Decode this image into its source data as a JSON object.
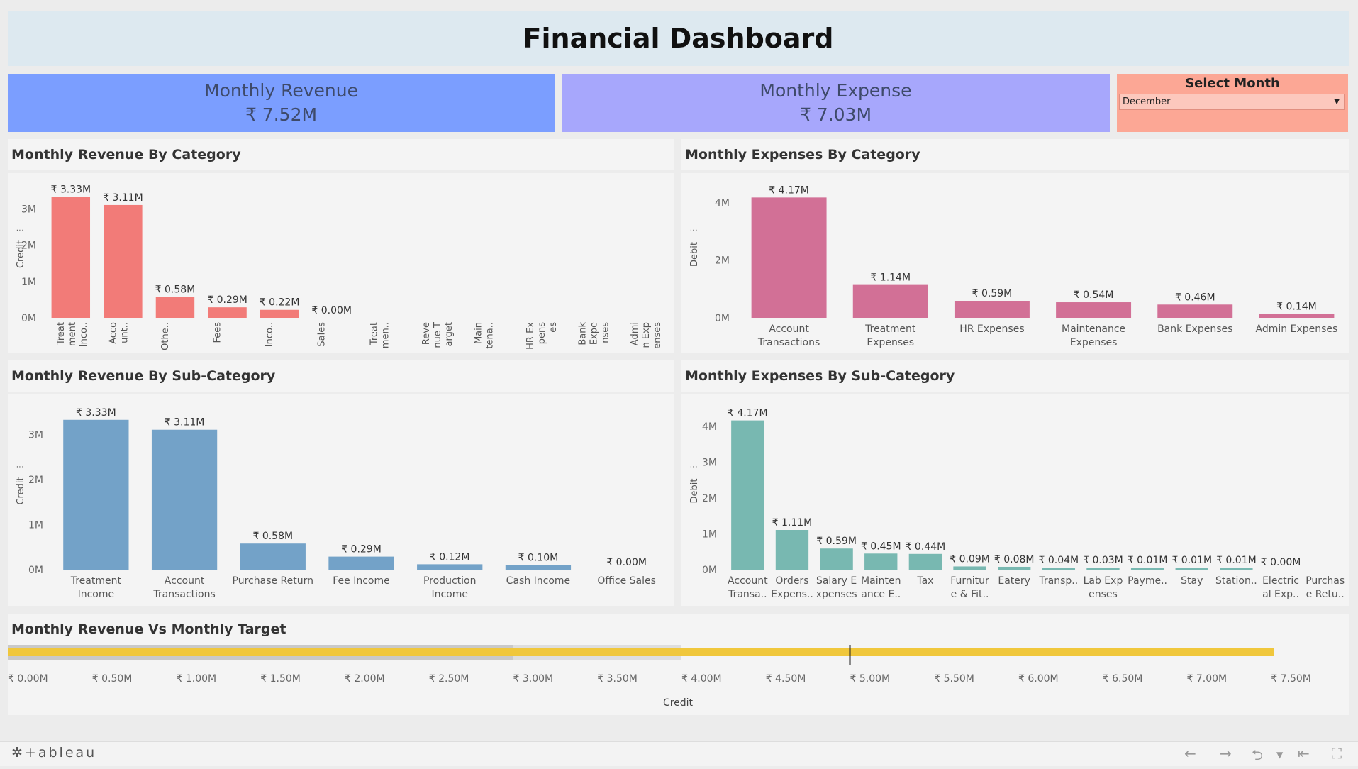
{
  "header": {
    "title": "Financial Dashboard"
  },
  "kpis": {
    "revenue": {
      "label": "Monthly Revenue",
      "value": "₹ 7.52M"
    },
    "expense": {
      "label": "Monthly Expense",
      "value": "₹ 7.03M"
    }
  },
  "filter": {
    "label": "Select Month",
    "selected": "December"
  },
  "footer": {
    "logo": "+ableau"
  },
  "colors": {
    "rev_cat": "#f27b78",
    "exp_cat": "#d27096",
    "rev_sub": "#73a2c8",
    "exp_sub": "#78b8b1",
    "target_bar": "#f0c73c",
    "band_dark": "#c9c9c9",
    "band_light": "#dedede"
  },
  "chart_data": [
    {
      "id": "rev_cat",
      "type": "bar",
      "title": "Monthly Revenue By Category",
      "ylabel": "Credit",
      "ylim": [
        0,
        3500000
      ],
      "yticks": [
        {
          "v": 0,
          "label": "0M"
        },
        {
          "v": 1000000,
          "label": "1M"
        },
        {
          "v": 2000000,
          "label": "2M"
        },
        {
          "v": 3000000,
          "label": "3M"
        }
      ],
      "categories": [
        [
          "Treat",
          "ment",
          "Inco.."
        ],
        [
          "Acco",
          "unt.."
        ],
        [
          "Othe.."
        ],
        [
          "Fees"
        ],
        [
          "Inco.."
        ],
        [
          "Sales"
        ],
        [
          "Treat",
          "men.."
        ],
        [
          "Reve",
          "nue T",
          "arget"
        ],
        [
          "Main",
          "tena.."
        ],
        [
          "HR Ex",
          "pens",
          "es"
        ],
        [
          "Bank",
          "Expe",
          "nses"
        ],
        [
          "Admi",
          "n Exp",
          "enses"
        ]
      ],
      "values": [
        3330000,
        3110000,
        580000,
        290000,
        220000,
        0,
        null,
        null,
        null,
        null,
        null,
        null
      ],
      "labels": [
        "₹ 3.33M",
        "₹ 3.11M",
        "₹ 0.58M",
        "₹ 0.29M",
        "₹ 0.22M",
        "₹ 0.00M",
        "",
        "",
        "",
        "",
        "",
        ""
      ]
    },
    {
      "id": "exp_cat",
      "type": "bar",
      "title": "Monthly Expenses By Category",
      "ylabel": "Debit",
      "ylim": [
        0,
        4400000
      ],
      "yticks": [
        {
          "v": 0,
          "label": "0M"
        },
        {
          "v": 2000000,
          "label": "2M"
        },
        {
          "v": 4000000,
          "label": "4M"
        }
      ],
      "categories": [
        [
          "Account",
          "Transactions"
        ],
        [
          "Treatment",
          "Expenses"
        ],
        [
          "HR Expenses"
        ],
        [
          "Maintenance",
          "Expenses"
        ],
        [
          "Bank Expenses"
        ],
        [
          "Admin Expenses"
        ]
      ],
      "values": [
        4170000,
        1140000,
        590000,
        540000,
        460000,
        140000
      ],
      "labels": [
        "₹ 4.17M",
        "₹ 1.14M",
        "₹ 0.59M",
        "₹ 0.54M",
        "₹ 0.46M",
        "₹ 0.14M"
      ]
    },
    {
      "id": "rev_sub",
      "type": "bar",
      "title": "Monthly Revenue By Sub-Category",
      "ylabel": "Credit",
      "ylim": [
        0,
        3500000
      ],
      "yticks": [
        {
          "v": 0,
          "label": "0M"
        },
        {
          "v": 1000000,
          "label": "1M"
        },
        {
          "v": 2000000,
          "label": "2M"
        },
        {
          "v": 3000000,
          "label": "3M"
        }
      ],
      "categories": [
        [
          "Treatment",
          "Income"
        ],
        [
          "Account",
          "Transactions"
        ],
        [
          "Purchase Return"
        ],
        [
          "Fee Income"
        ],
        [
          "Production",
          "Income"
        ],
        [
          "Cash Income"
        ],
        [
          "Office Sales"
        ]
      ],
      "values": [
        3330000,
        3110000,
        580000,
        290000,
        120000,
        100000,
        0
      ],
      "labels": [
        "₹ 3.33M",
        "₹ 3.11M",
        "₹ 0.58M",
        "₹ 0.29M",
        "₹ 0.12M",
        "₹ 0.10M",
        "₹ 0.00M"
      ]
    },
    {
      "id": "exp_sub",
      "type": "bar",
      "title": "Monthly Expenses By Sub-Category",
      "ylabel": "Debit",
      "ylim": [
        0,
        4400000
      ],
      "yticks": [
        {
          "v": 0,
          "label": "0M"
        },
        {
          "v": 1000000,
          "label": "1M"
        },
        {
          "v": 2000000,
          "label": "2M"
        },
        {
          "v": 3000000,
          "label": "3M"
        },
        {
          "v": 4000000,
          "label": "4M"
        }
      ],
      "categories": [
        [
          "Account",
          "Transa.."
        ],
        [
          "Orders",
          "Expens.."
        ],
        [
          "Salary E",
          "xpenses"
        ],
        [
          "Mainten",
          "ance E.."
        ],
        [
          "Tax"
        ],
        [
          "Furnitur",
          "e & Fit.."
        ],
        [
          "Eatery"
        ],
        [
          "Transp.."
        ],
        [
          "Lab Exp",
          "enses"
        ],
        [
          "Payme.."
        ],
        [
          "Stay"
        ],
        [
          "Station.."
        ],
        [
          "Electric",
          "al Exp.."
        ],
        [
          "Purchas",
          "e Retu.."
        ]
      ],
      "values": [
        4170000,
        1110000,
        590000,
        450000,
        440000,
        90000,
        80000,
        40000,
        30000,
        10000,
        10000,
        10000,
        0,
        null
      ],
      "labels": [
        "₹ 4.17M",
        "₹ 1.11M",
        "₹ 0.59M",
        "₹ 0.45M",
        "₹ 0.44M",
        "₹ 0.09M",
        "₹ 0.08M",
        "₹ 0.04M",
        "₹ 0.03M",
        "₹ 0.01M",
        "₹ 0.01M",
        "₹ 0.01M",
        "₹ 0.00M",
        ""
      ]
    },
    {
      "id": "target",
      "type": "bar",
      "title": "Monthly Revenue Vs Monthly Target",
      "xlabel": "Credit",
      "xlim": [
        0,
        8000000
      ],
      "value": 7520000,
      "target": 5000000,
      "bands": [
        3000000,
        4000000
      ],
      "xticks": [
        {
          "v": 0,
          "label": "₹ 0.00M"
        },
        {
          "v": 500000,
          "label": "₹ 0.50M"
        },
        {
          "v": 1000000,
          "label": "₹ 1.00M"
        },
        {
          "v": 1500000,
          "label": "₹ 1.50M"
        },
        {
          "v": 2000000,
          "label": "₹ 2.00M"
        },
        {
          "v": 2500000,
          "label": "₹ 2.50M"
        },
        {
          "v": 3000000,
          "label": "₹ 3.00M"
        },
        {
          "v": 3500000,
          "label": "₹ 3.50M"
        },
        {
          "v": 4000000,
          "label": "₹ 4.00M"
        },
        {
          "v": 4500000,
          "label": "₹ 4.50M"
        },
        {
          "v": 5000000,
          "label": "₹ 5.00M"
        },
        {
          "v": 5500000,
          "label": "₹ 5.50M"
        },
        {
          "v": 6000000,
          "label": "₹ 6.00M"
        },
        {
          "v": 6500000,
          "label": "₹ 6.50M"
        },
        {
          "v": 7000000,
          "label": "₹ 7.00M"
        },
        {
          "v": 7500000,
          "label": "₹ 7.50M"
        }
      ]
    }
  ]
}
